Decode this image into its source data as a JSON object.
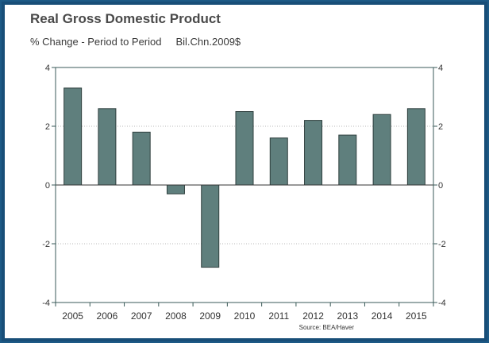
{
  "chart_data": {
    "type": "bar",
    "title": "Real Gross Domestic Product",
    "subtitle_left": "% Change - Period to Period",
    "subtitle_right": "Bil.Chn.2009$",
    "source": "Source: BEA/Haver",
    "categories": [
      "2005",
      "2006",
      "2007",
      "2008",
      "2009",
      "2010",
      "2011",
      "2012",
      "2013",
      "2014",
      "2015"
    ],
    "values": [
      3.3,
      2.6,
      1.8,
      -0.3,
      -2.8,
      2.5,
      1.6,
      2.2,
      1.7,
      2.4,
      2.6
    ],
    "ylim": [
      -4,
      4
    ],
    "yticks": [
      4,
      2,
      0,
      -2,
      -4
    ],
    "grid": true,
    "xlabel": "",
    "ylabel": "",
    "colors": {
      "bar_fill": "#5f7f7d",
      "bar_stroke": "#2f3f3e",
      "axis": "#3a5a58",
      "grid": "#b8b8b8",
      "zero_line": "#333333",
      "text": "#333333"
    }
  }
}
